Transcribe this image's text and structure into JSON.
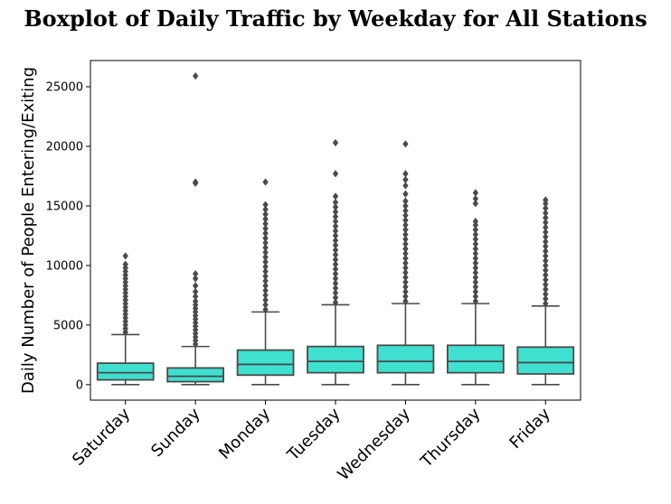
{
  "chart_data": {
    "type": "boxplot",
    "title": "Boxplot of Daily Traffic by Weekday for All Stations",
    "xlabel": "",
    "ylabel": "Daily Number of People Entering/Exiting",
    "ylim": [
      -1300,
      27200
    ],
    "yticks": [
      0,
      5000,
      10000,
      15000,
      20000,
      25000
    ],
    "grid": false,
    "box_color": "#40e0d0",
    "line_color": "#4a4a4a",
    "categories": [
      "Saturday",
      "Sunday",
      "Monday",
      "Tuesday",
      "Wednesday",
      "Thursday",
      "Friday"
    ],
    "boxes": [
      {
        "min": 0,
        "q1": 400,
        "median": 1000,
        "q3": 1800,
        "max": 4200,
        "outliers": [
          4400,
          4700,
          5000,
          5300,
          5600,
          5900,
          6200,
          6500,
          6800,
          7100,
          7400,
          7700,
          8000,
          8300,
          8600,
          8900,
          9200,
          9500,
          9800,
          10100,
          10800
        ]
      },
      {
        "min": 0,
        "q1": 250,
        "median": 700,
        "q3": 1400,
        "max": 3200,
        "outliers": [
          3400,
          3700,
          4000,
          4300,
          4600,
          4900,
          5200,
          5500,
          5800,
          6100,
          6400,
          6700,
          7000,
          7400,
          7800,
          8300,
          8900,
          9300,
          16900,
          17000,
          25900
        ]
      },
      {
        "min": 0,
        "q1": 800,
        "median": 1700,
        "q3": 2900,
        "max": 6100,
        "outliers": [
          6300,
          6700,
          7100,
          7500,
          7900,
          8300,
          8700,
          9100,
          9500,
          9900,
          10300,
          10700,
          11100,
          11500,
          11900,
          12300,
          12700,
          13100,
          13500,
          13900,
          14300,
          14700,
          15100,
          17000
        ]
      },
      {
        "min": 0,
        "q1": 1000,
        "median": 1950,
        "q3": 3200,
        "max": 6700,
        "outliers": [
          6900,
          7300,
          7700,
          8100,
          8500,
          8900,
          9300,
          9700,
          10100,
          10500,
          10900,
          11300,
          11700,
          12100,
          12500,
          12900,
          13300,
          13700,
          14100,
          14500,
          14900,
          15300,
          15800,
          17700,
          20300
        ]
      },
      {
        "min": 0,
        "q1": 1000,
        "median": 1950,
        "q3": 3300,
        "max": 6800,
        "outliers": [
          7000,
          7400,
          7800,
          8200,
          8600,
          9000,
          9400,
          9800,
          10200,
          10600,
          11000,
          11400,
          11800,
          12200,
          12600,
          13000,
          13400,
          13800,
          14200,
          14600,
          15000,
          15400,
          16000,
          16700,
          17200,
          17700,
          20200
        ]
      },
      {
        "min": 0,
        "q1": 1000,
        "median": 1950,
        "q3": 3300,
        "max": 6800,
        "outliers": [
          7000,
          7400,
          7800,
          8200,
          8600,
          9000,
          9400,
          9800,
          10200,
          10600,
          11000,
          11400,
          11800,
          12200,
          12600,
          13000,
          13400,
          13700,
          15200,
          15600,
          16100
        ]
      },
      {
        "min": 0,
        "q1": 900,
        "median": 1850,
        "q3": 3150,
        "max": 6600,
        "outliers": [
          6800,
          7200,
          7600,
          8000,
          8400,
          8800,
          9200,
          9600,
          10000,
          10400,
          10800,
          11200,
          11600,
          12000,
          12400,
          12800,
          13200,
          13600,
          14000,
          14400,
          14800,
          15200,
          15500
        ]
      }
    ]
  }
}
